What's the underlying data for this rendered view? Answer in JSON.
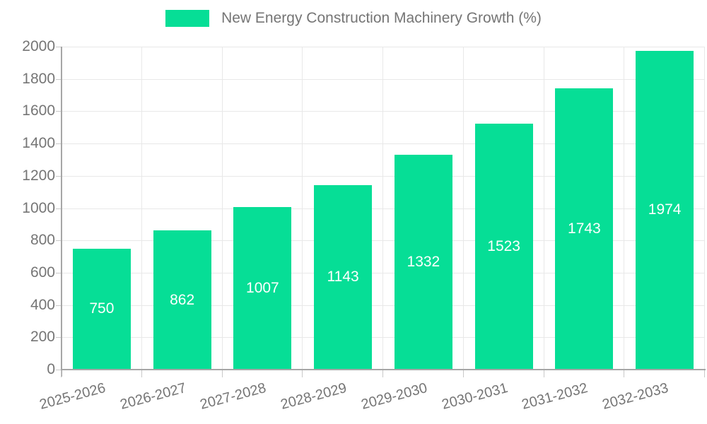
{
  "chart_data": {
    "type": "bar",
    "title": "New Energy Construction Machinery Growth (%)",
    "categories": [
      "2025-2026",
      "2026-2027",
      "2027-2028",
      "2028-2029",
      "2029-2030",
      "2030-2031",
      "2031-2032",
      "2032-2033"
    ],
    "values": [
      750,
      862,
      1007,
      1143,
      1332,
      1523,
      1743,
      1974
    ],
    "xlabel": "",
    "ylabel": "",
    "ylim": [
      0,
      2000
    ],
    "ytick_step": 200,
    "ytick_labels": [
      "0",
      "200",
      "400",
      "600",
      "800",
      "1000",
      "1200",
      "1400",
      "1600",
      "1800",
      "2000"
    ],
    "grid": true,
    "legend_position": "top-center",
    "value_labels_inside_bars": true,
    "colors": {
      "bar": "#06de96",
      "value_text": "#ffffff",
      "axis_text": "#757575",
      "axis_line": "#a6a6a6",
      "gridline": "#e8e8e8",
      "background": "#ffffff"
    }
  }
}
